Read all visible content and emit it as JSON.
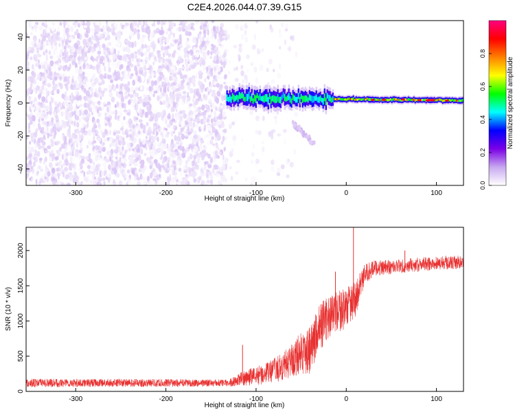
{
  "title": "C2E4.2026.044.07.39.G15",
  "chart_data": [
    {
      "type": "heatmap",
      "xlabel": "Height of straight line (km)",
      "ylabel": "Frequency (Hz)",
      "xlim": [
        -355,
        130
      ],
      "ylim": [
        -50,
        50
      ],
      "xticks": [
        -300,
        -200,
        -100,
        0,
        100
      ],
      "xtick_labels": [
        "-300",
        "-200",
        "-100",
        "0",
        "100"
      ],
      "yticks": [
        -40,
        -20,
        0,
        20,
        40
      ],
      "ytick_labels": [
        "-40",
        "-20",
        "0",
        "20",
        "40"
      ],
      "regions": [
        {
          "name": "noise",
          "x_range": [
            -355,
            -133
          ],
          "f_range": [
            -50,
            50
          ],
          "amplitude": [
            0.0,
            0.08
          ]
        },
        {
          "name": "sparse-noise",
          "x_range": [
            -133,
            -55
          ],
          "f_range": [
            -50,
            50
          ],
          "amplitude": [
            0.0,
            0.05
          ]
        },
        {
          "name": "signal-band",
          "x_range": [
            -133,
            130
          ],
          "center_freq_start": 3,
          "center_freq_end": 1.5,
          "amplitude": [
            0.3,
            0.95
          ]
        },
        {
          "name": "lower-branch",
          "x_range": [
            -60,
            -35
          ],
          "f_start": -12,
          "f_end": -25,
          "amplitude": [
            0.05,
            0.1
          ]
        }
      ],
      "colorbar": {
        "label": "Normalized spectral amplitude",
        "range": [
          0,
          1
        ],
        "ticks": [
          0.0,
          0.2,
          0.4,
          0.6,
          0.8
        ],
        "tick_labels": [
          "0.0",
          "0.2",
          "0.4",
          "0.6",
          "0.8"
        ],
        "colors": [
          "#ffffff",
          "#c8a8f0",
          "#7a00e6",
          "#0000ff",
          "#00ffff",
          "#00ff00",
          "#ffff00",
          "#ff8000",
          "#ff0000",
          "#ff0080"
        ]
      }
    },
    {
      "type": "line",
      "xlabel": "Height of straight line (km)",
      "ylabel": "SNR (10 * v/v)",
      "xlim": [
        -355,
        130
      ],
      "ylim": [
        0,
        2330
      ],
      "xticks": [
        -300,
        -200,
        -100,
        0,
        100
      ],
      "xtick_labels": [
        "-300",
        "-200",
        "-100",
        "0",
        "100"
      ],
      "yticks": [
        0,
        500,
        1000,
        1500,
        2000
      ],
      "ytick_labels": [
        "0",
        "500",
        "1000",
        "1500",
        "2000"
      ],
      "color": "#e83030",
      "envelope": [
        {
          "x": -355,
          "mean": 120,
          "noise": 60
        },
        {
          "x": -200,
          "mean": 120,
          "noise": 55
        },
        {
          "x": -130,
          "mean": 120,
          "noise": 50
        },
        {
          "x": -110,
          "mean": 200,
          "noise": 120
        },
        {
          "x": -90,
          "mean": 250,
          "noise": 150
        },
        {
          "x": -70,
          "mean": 350,
          "noise": 200
        },
        {
          "x": -50,
          "mean": 550,
          "noise": 300
        },
        {
          "x": -40,
          "mean": 600,
          "noise": 350
        },
        {
          "x": -30,
          "mean": 900,
          "noise": 350
        },
        {
          "x": -20,
          "mean": 1050,
          "noise": 300
        },
        {
          "x": -5,
          "mean": 1150,
          "noise": 300
        },
        {
          "x": 10,
          "mean": 1300,
          "noise": 250
        },
        {
          "x": 20,
          "mean": 1650,
          "noise": 150
        },
        {
          "x": 30,
          "mean": 1750,
          "noise": 110
        },
        {
          "x": 60,
          "mean": 1780,
          "noise": 100
        },
        {
          "x": 100,
          "mean": 1820,
          "noise": 100
        },
        {
          "x": 130,
          "mean": 1830,
          "noise": 100
        }
      ],
      "spikes": [
        {
          "x": 8,
          "y": 2330
        },
        {
          "x": -115,
          "y": 660
        },
        {
          "x": -12,
          "y": 1700
        },
        {
          "x": 65,
          "y": 2000
        }
      ]
    }
  ]
}
